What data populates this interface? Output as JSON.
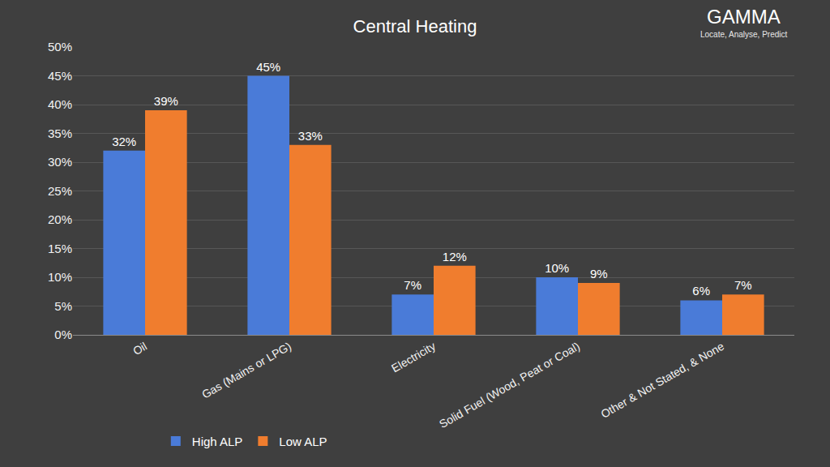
{
  "chart_data": {
    "type": "bar",
    "title": "Central Heating",
    "annotations": [
      "GAMMA",
      "Locate, Analyse, Predict"
    ],
    "categories": [
      "Oil",
      "Gas (Mains or LPG)",
      "Electricity",
      "Solid Fuel (Wood, Peat or Coal)",
      "Other & Not Stated, & None"
    ],
    "series": [
      {
        "name": "High ALP",
        "color": "#4a7bd8",
        "values": [
          32,
          45,
          7,
          10,
          6
        ],
        "value_labels": [
          "32%",
          "45%",
          "7%",
          "10%",
          "6%"
        ]
      },
      {
        "name": "Low ALP",
        "color": "#f07d2e",
        "values": [
          39,
          33,
          12,
          9,
          7
        ],
        "value_labels": [
          "39%",
          "33%",
          "12%",
          "9%",
          "7%"
        ]
      }
    ],
    "ylim": [
      0,
      50
    ],
    "yticks": [
      {
        "value": 0,
        "label": "0%"
      },
      {
        "value": 5,
        "label": "5%"
      },
      {
        "value": 10,
        "label": "10%"
      },
      {
        "value": 15,
        "label": "15%"
      },
      {
        "value": 20,
        "label": "20%"
      },
      {
        "value": 25,
        "label": "25%"
      },
      {
        "value": 30,
        "label": "30%"
      },
      {
        "value": 35,
        "label": "35%"
      },
      {
        "value": 40,
        "label": "40%"
      },
      {
        "value": 45,
        "label": "45%"
      },
      {
        "value": 50,
        "label": "50%"
      }
    ],
    "grid": true,
    "data_labels": true,
    "legend": "bottom left"
  }
}
